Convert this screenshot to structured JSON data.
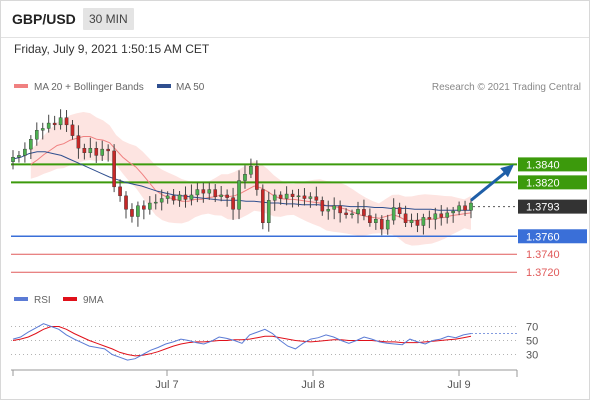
{
  "header": {
    "symbol": "GBP/USD",
    "timeframe": "30 MIN"
  },
  "datetime": "Friday, July 9, 2021 1:50:15 AM CET",
  "legend": {
    "ma20": {
      "label": "MA 20 + Bollinger Bands",
      "color": "#f08080"
    },
    "ma50": {
      "label": "MA 50",
      "color": "#2f4f8f"
    },
    "copyright": "Research © 2021 Trading Central"
  },
  "rsi_legend": {
    "rsi": {
      "label": "RSI",
      "color": "#5b7bd5"
    },
    "ma9": {
      "label": "9MA",
      "color": "#e0101a"
    }
  },
  "colors": {
    "up": "#4caf50",
    "down": "#c62828",
    "band_fill": "#fde4e1",
    "resistance": "#3c9a0c",
    "support": "#3a6fd8",
    "minor": "#e05a5a",
    "current": "#333333",
    "arrow": "#1f5fa8"
  },
  "chart_data": [
    {
      "type": "candlestick",
      "title": "",
      "xlabel": "",
      "ylabel": "",
      "x_ticks": [
        "Jul 7",
        "Jul 8",
        "Jul 9"
      ],
      "ylim": [
        1.3708,
        1.3915
      ],
      "grid": false,
      "price_levels": [
        {
          "label": "1.3840",
          "value": 1.384,
          "kind": "resistance"
        },
        {
          "label": "1.3820",
          "value": 1.382,
          "kind": "resistance"
        },
        {
          "label": "1.3793",
          "value": 1.3793,
          "kind": "current"
        },
        {
          "label": "1.3760",
          "value": 1.376,
          "kind": "support"
        },
        {
          "label": "1.3740",
          "value": 1.374,
          "kind": "minor"
        },
        {
          "label": "1.3720",
          "value": 1.372,
          "kind": "minor"
        }
      ],
      "close_series": [
        1.3848,
        1.385,
        1.3857,
        1.3868,
        1.3878,
        1.388,
        1.3886,
        1.3884,
        1.3892,
        1.3884,
        1.3872,
        1.3858,
        1.3853,
        1.3858,
        1.385,
        1.3857,
        1.3855,
        1.3815,
        1.3805,
        1.379,
        1.3782,
        1.3794,
        1.379,
        1.3797,
        1.3798,
        1.3802,
        1.3805,
        1.38,
        1.3806,
        1.3801,
        1.3806,
        1.3812,
        1.3808,
        1.3812,
        1.3804,
        1.3806,
        1.3803,
        1.379,
        1.3822,
        1.3829,
        1.3838,
        1.3812,
        1.3775,
        1.38,
        1.3806,
        1.3802,
        1.3807,
        1.3804,
        1.3805,
        1.3802,
        1.3804,
        1.38,
        1.3788,
        1.379,
        1.3794,
        1.3786,
        1.3784,
        1.3785,
        1.379,
        1.3783,
        1.3775,
        1.3779,
        1.3768,
        1.3778,
        1.3792,
        1.3785,
        1.3775,
        1.3778,
        1.3772,
        1.3781,
        1.3779,
        1.3785,
        1.3781,
        1.3786,
        1.3788,
        1.3794,
        1.3789,
        1.3797
      ],
      "ma20_series": [
        1.384,
        1.3845,
        1.3851,
        1.3856,
        1.3861,
        1.3863,
        1.3867,
        1.3869,
        1.3871,
        1.3871,
        1.3868,
        1.3867,
        1.3864,
        1.3856,
        1.3848,
        1.3842,
        1.3837,
        1.3829,
        1.382,
        1.3811,
        1.3806,
        1.3803,
        1.3801,
        1.3799,
        1.3799,
        1.3801,
        1.3801,
        1.3803,
        1.3804,
        1.3806,
        1.3804,
        1.3805,
        1.3808,
        1.3812,
        1.3816,
        1.3814,
        1.381,
        1.3805,
        1.3802,
        1.3801,
        1.3801,
        1.38,
        1.3799,
        1.3798,
        1.3797,
        1.3794,
        1.3793,
        1.3792,
        1.379,
        1.3787,
        1.3784,
        1.3782,
        1.3781,
        1.378,
        1.3782,
        1.3784,
        1.3782,
        1.3778,
        1.3777,
        1.3778,
        1.3779,
        1.3779,
        1.378,
        1.3781,
        1.3783,
        1.3784,
        1.3785,
        1.3786
      ],
      "ma50_series": [
        1.3846,
        1.3848,
        1.3852,
        1.3854,
        1.3854,
        1.3852,
        1.385,
        1.3846,
        1.3842,
        1.3838,
        1.3834,
        1.383,
        1.3826,
        1.3823,
        1.382,
        1.3818,
        1.3816,
        1.3813,
        1.381,
        1.3808,
        1.3806,
        1.3805,
        1.3804,
        1.3803,
        1.3802,
        1.3801,
        1.38,
        1.38,
        1.38,
        1.3799,
        1.3799,
        1.3798,
        1.3797,
        1.3797,
        1.3796,
        1.3796,
        1.3795,
        1.3795,
        1.3795,
        1.3794,
        1.3794,
        1.3794,
        1.3793,
        1.3793,
        1.3793,
        1.3792,
        1.3792,
        1.3791,
        1.3791,
        1.3791,
        1.379,
        1.379,
        1.379,
        1.3789,
        1.3789,
        1.3789,
        1.3789,
        1.3789
      ]
    },
    {
      "type": "line",
      "title": "",
      "ylabel": "",
      "y_ticks": [
        "70",
        "50",
        "30"
      ],
      "ylim": [
        15,
        85
      ],
      "series": [
        {
          "name": "RSI",
          "values": [
            52,
            55,
            62,
            68,
            74,
            70,
            66,
            58,
            52,
            47,
            42,
            40,
            38,
            30,
            26,
            22,
            24,
            30,
            36,
            40,
            45,
            48,
            52,
            50,
            47,
            45,
            49,
            55,
            53,
            50,
            46,
            58,
            62,
            66,
            60,
            50,
            42,
            38,
            46,
            52,
            54,
            58,
            55,
            50,
            46,
            50,
            55,
            52,
            48,
            46,
            45,
            44,
            52,
            48,
            45,
            50,
            52,
            56,
            54,
            58,
            60
          ]
        },
        {
          "name": "9MA",
          "values": [
            50,
            52,
            55,
            60,
            66,
            70,
            70,
            66,
            60,
            55,
            50,
            46,
            42,
            38,
            33,
            30,
            28,
            29,
            31,
            34,
            38,
            42,
            45,
            47,
            48,
            48,
            49,
            50,
            50,
            51,
            51,
            52,
            54,
            56,
            56,
            54,
            52,
            50,
            49,
            48,
            49,
            50,
            51,
            51,
            50,
            50,
            50,
            50,
            49,
            48,
            48,
            47,
            47,
            47,
            48,
            49,
            50,
            51,
            52,
            54,
            56
          ]
        }
      ]
    }
  ]
}
